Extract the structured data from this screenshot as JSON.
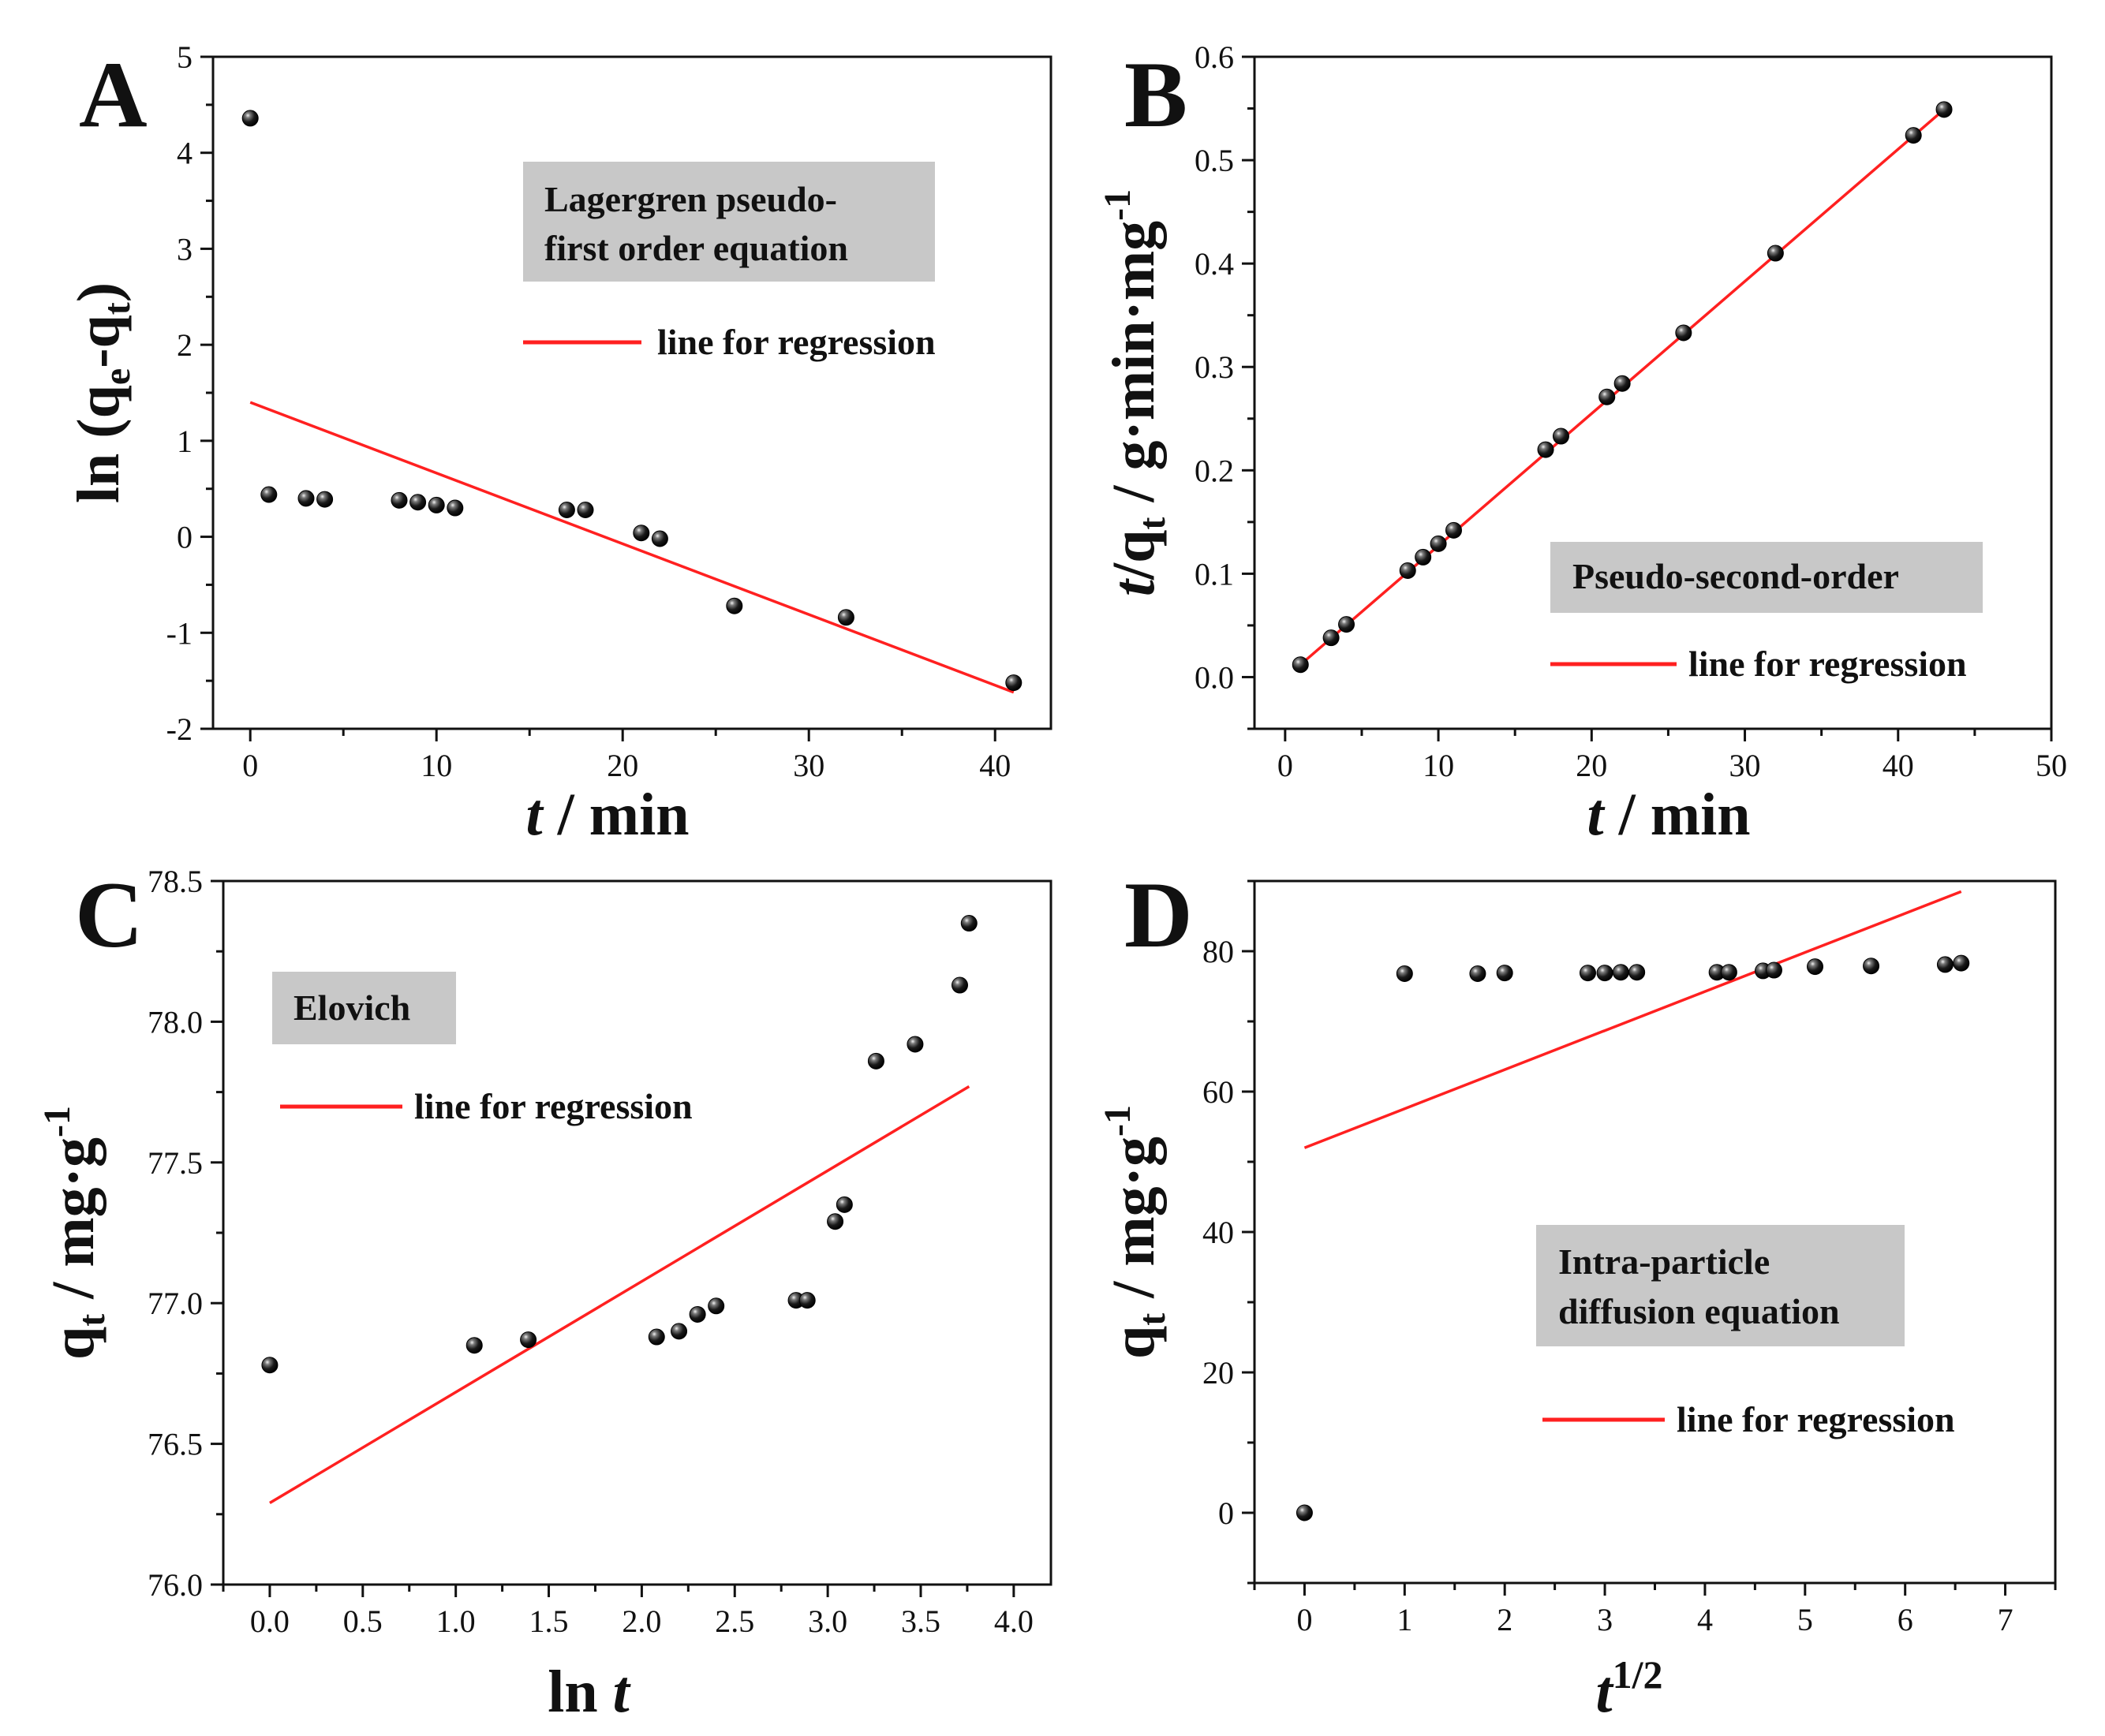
{
  "chart_data": [
    {
      "id": "A",
      "type": "scatter",
      "panel_label": "A",
      "xlabel_italic": "t",
      "xlabel_rest": " / min",
      "ylabel": "ln (qe-qt)",
      "ylabel_parts": [
        "ln (q",
        "e",
        "-q",
        "t",
        ")"
      ],
      "xlim": [
        -2,
        43
      ],
      "ylim": [
        -2,
        5
      ],
      "xticks": [
        0,
        10,
        20,
        30,
        40
      ],
      "yticks": [
        -2,
        -1,
        0,
        1,
        2,
        3,
        4,
        5
      ],
      "annotation": [
        "Lagergren pseudo-",
        "first order equation"
      ],
      "legend": "line for regression",
      "points": [
        [
          0,
          4.36
        ],
        [
          1,
          0.44
        ],
        [
          3,
          0.4
        ],
        [
          4,
          0.39
        ],
        [
          8,
          0.38
        ],
        [
          9,
          0.36
        ],
        [
          10,
          0.33
        ],
        [
          11,
          0.3
        ],
        [
          17,
          0.28
        ],
        [
          18,
          0.28
        ],
        [
          21,
          0.04
        ],
        [
          22,
          -0.02
        ],
        [
          26,
          -0.72
        ],
        [
          32,
          -0.84
        ],
        [
          41,
          -1.52
        ]
      ],
      "fit": [
        [
          0,
          1.4
        ],
        [
          41,
          -1.62
        ]
      ]
    },
    {
      "id": "B",
      "type": "scatter",
      "panel_label": "B",
      "xlabel_italic": "t",
      "xlabel_rest": " / min",
      "ylabel": "t/qt / g·min·mg-1",
      "ylabel_parts": [
        "t",
        "/q",
        "t",
        " / g·min·mg",
        "-1"
      ],
      "xlim": [
        -2,
        50
      ],
      "ylim": [
        -0.05,
        0.6
      ],
      "xticks": [
        0,
        10,
        20,
        30,
        40,
        50
      ],
      "yticks": [
        0.0,
        0.1,
        0.2,
        0.3,
        0.4,
        0.5,
        0.6
      ],
      "ytick_labels": [
        "0.0",
        "0.1",
        "0.2",
        "0.3",
        "0.4",
        "0.5",
        "0.6"
      ],
      "annotation": [
        "Pseudo-second-order"
      ],
      "legend": "line for regression",
      "points": [
        [
          1,
          0.012
        ],
        [
          3,
          0.038
        ],
        [
          4,
          0.051
        ],
        [
          8,
          0.103
        ],
        [
          9,
          0.116
        ],
        [
          10,
          0.129
        ],
        [
          11,
          0.142
        ],
        [
          17,
          0.22
        ],
        [
          18,
          0.233
        ],
        [
          21,
          0.271
        ],
        [
          22,
          0.284
        ],
        [
          26,
          0.333
        ],
        [
          32,
          0.41
        ],
        [
          41,
          0.524
        ],
        [
          43,
          0.549
        ]
      ],
      "fit": [
        [
          1,
          0.012
        ],
        [
          43,
          0.549
        ]
      ]
    },
    {
      "id": "C",
      "type": "scatter",
      "panel_label": "C",
      "xlabel_italic": "t",
      "xlabel_prefix": "ln ",
      "ylabel": "qt / mg·g-1",
      "ylabel_parts": [
        "q",
        "t",
        " / mg·g",
        "-1"
      ],
      "xlim": [
        -0.25,
        4.2
      ],
      "ylim": [
        76.0,
        78.5
      ],
      "xticks": [
        0.0,
        0.5,
        1.0,
        1.5,
        2.0,
        2.5,
        3.0,
        3.5,
        4.0
      ],
      "xtick_labels": [
        "0.0",
        "0.5",
        "1.0",
        "1.5",
        "2.0",
        "2.5",
        "3.0",
        "3.5",
        "4.0"
      ],
      "yticks": [
        76.0,
        76.5,
        77.0,
        77.5,
        78.0,
        78.5
      ],
      "ytick_labels": [
        "76.0",
        "76.5",
        "77.0",
        "77.5",
        "78.0",
        "78.5"
      ],
      "annotation": [
        "Elovich"
      ],
      "legend": "line for regression",
      "points": [
        [
          0.0,
          76.78
        ],
        [
          1.1,
          76.85
        ],
        [
          1.39,
          76.87
        ],
        [
          2.08,
          76.88
        ],
        [
          2.2,
          76.9
        ],
        [
          2.3,
          76.96
        ],
        [
          2.4,
          76.99
        ],
        [
          2.83,
          77.01
        ],
        [
          2.89,
          77.01
        ],
        [
          3.04,
          77.29
        ],
        [
          3.09,
          77.35
        ],
        [
          3.26,
          77.86
        ],
        [
          3.47,
          77.92
        ],
        [
          3.71,
          78.13
        ],
        [
          3.76,
          78.35
        ]
      ],
      "fit": [
        [
          0.0,
          76.29
        ],
        [
          3.76,
          77.77
        ]
      ]
    },
    {
      "id": "D",
      "type": "scatter",
      "panel_label": "D",
      "xlabel_base": "t",
      "xlabel_sup": "1/2",
      "ylabel": "qt / mg·g-1",
      "ylabel_parts": [
        "q",
        "t",
        " / mg·g",
        "-1"
      ],
      "xlim": [
        -0.5,
        7.5
      ],
      "ylim": [
        -10,
        90
      ],
      "xticks": [
        0,
        1,
        2,
        3,
        4,
        5,
        6,
        7
      ],
      "yticks": [
        0,
        20,
        40,
        60,
        80
      ],
      "annotation": [
        "Intra-particle",
        "diffusion equation"
      ],
      "legend": "line for regression",
      "points": [
        [
          0,
          0
        ],
        [
          1.0,
          76.8
        ],
        [
          1.73,
          76.8
        ],
        [
          2.0,
          76.9
        ],
        [
          2.83,
          76.9
        ],
        [
          3.0,
          76.9
        ],
        [
          3.16,
          77.0
        ],
        [
          3.32,
          77.0
        ],
        [
          4.12,
          77.0
        ],
        [
          4.24,
          77.0
        ],
        [
          4.58,
          77.2
        ],
        [
          4.69,
          77.3
        ],
        [
          5.1,
          77.8
        ],
        [
          5.66,
          77.9
        ],
        [
          6.4,
          78.1
        ],
        [
          6.56,
          78.3
        ]
      ],
      "fit": [
        [
          0,
          52.0
        ],
        [
          6.56,
          88.5
        ]
      ]
    }
  ]
}
